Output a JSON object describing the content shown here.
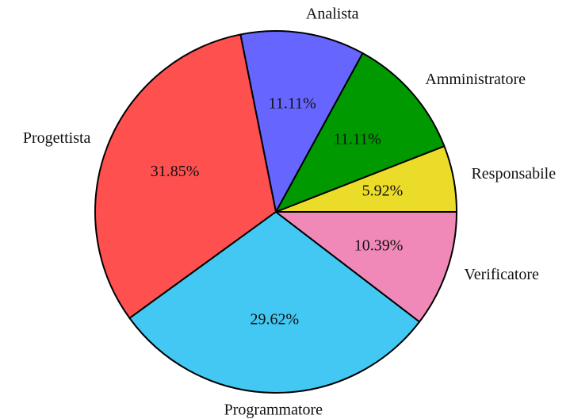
{
  "chart_data": {
    "type": "pie",
    "categories": [
      "Responsabile",
      "Amministratore",
      "Analista",
      "Progettista",
      "Programmatore",
      "Verificatore"
    ],
    "values": [
      5.92,
      11.11,
      11.11,
      31.85,
      29.62,
      10.39
    ],
    "value_labels": [
      "5.92%",
      "11.11%",
      "11.11%",
      "31.85%",
      "29.62%",
      "10.39%"
    ],
    "colors": [
      "#ecdc2a",
      "#009900",
      "#6666ff",
      "#ff5050",
      "#42c8f2",
      "#f189b8"
    ]
  }
}
